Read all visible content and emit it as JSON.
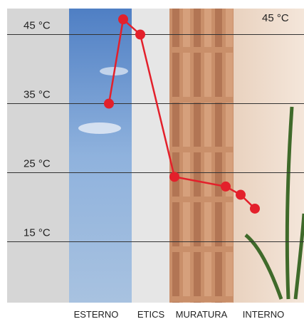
{
  "chart_data": {
    "type": "line",
    "annotation": "45 °C",
    "layers": [
      "ESTERNO",
      "ETICS",
      "MURATURA",
      "INTERNO"
    ],
    "categories": [
      null,
      null,
      null,
      null,
      null,
      null,
      null
    ],
    "series": [
      {
        "color": "#e3202b",
        "values": [
          35,
          47.2,
          45,
          24.4,
          23,
          21.8,
          19.8
        ]
      }
    ],
    "ylim": [
      10,
      50
    ],
    "yticks": [
      {
        "value": 15,
        "label": "15 °C"
      },
      {
        "value": 25,
        "label": "25 °C"
      },
      {
        "value": 35,
        "label": "35 °C"
      },
      {
        "value": 45,
        "label": "45 °C"
      }
    ],
    "grid": true
  }
}
